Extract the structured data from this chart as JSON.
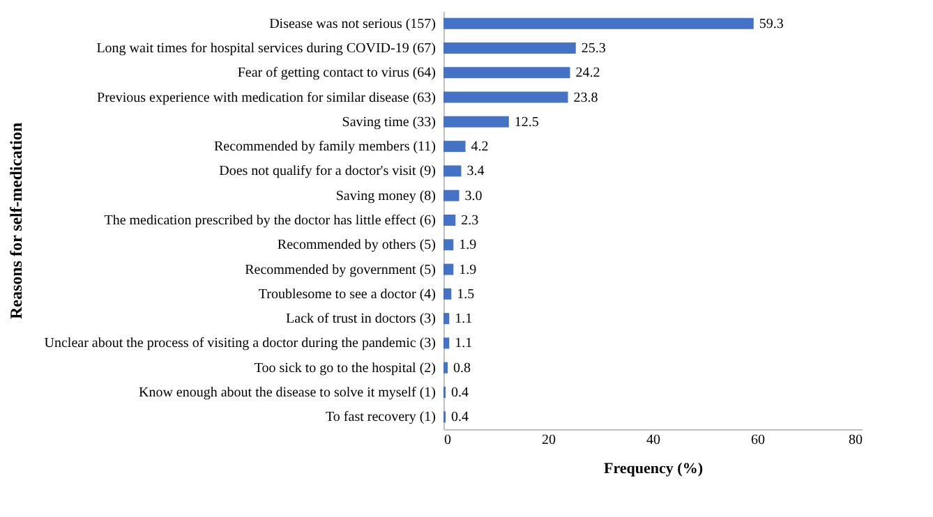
{
  "chart_data": {
    "type": "bar",
    "orientation": "horizontal",
    "xlabel": "Frequency (%)",
    "ylabel": "Reasons for self-medication",
    "categories": [
      "Disease was not serious (157)",
      "Long wait times for hospital services during COVID-19 (67)",
      "Fear of getting contact to virus (64)",
      "Previous experience with medication for similar disease (63)",
      "Saving time (33)",
      "Recommended by family members (11)",
      "Does not qualify for a doctor's visit (9)",
      "Saving money (8)",
      "The medication prescribed by the doctor has little effect (6)",
      "Recommended by others (5)",
      "Recommended by government (5)",
      "Troublesome to see a doctor (4)",
      "Lack of trust in doctors (3)",
      "Unclear about the process of visiting a doctor during the pandemic (3)",
      "Too sick to go to the hospital (2)",
      "Know enough about the disease to solve it myself (1)",
      "To fast recovery (1)"
    ],
    "values": [
      59.3,
      25.3,
      24.2,
      23.8,
      12.5,
      4.2,
      3.4,
      3.0,
      2.3,
      1.9,
      1.9,
      1.5,
      1.1,
      1.1,
      0.8,
      0.4,
      0.4
    ],
    "value_labels": [
      "59.3",
      "25.3",
      "24.2",
      "23.8",
      "12.5",
      "4.2",
      "3.4",
      "3.0",
      "2.3",
      "1.9",
      "1.9",
      "1.5",
      "1.1",
      "1.1",
      "0.8",
      "0.4",
      "0.4"
    ],
    "color": "#4472c4",
    "xlim": [
      0,
      80
    ],
    "xticks": [
      0,
      20,
      40,
      60,
      80
    ],
    "grid": false
  }
}
